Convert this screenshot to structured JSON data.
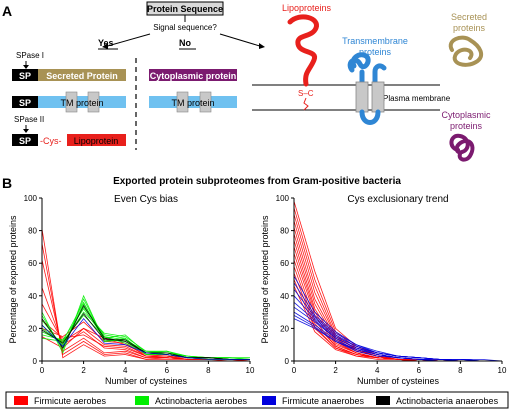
{
  "panel_a": {
    "letter": "A",
    "protein_sequence": "Protein Sequence",
    "signal_question": "Signal sequence?",
    "yes": "Yes",
    "no": "No",
    "spase1": "SPase I",
    "spase2": "SPase II",
    "sp": "SP",
    "secreted_protein": "Secreted Protein",
    "tm_protein": "TM protein",
    "cytoplasmic_protein": "Cytoplasmic protein",
    "cys": "-Cys-",
    "lipoprotein": "Lipoprotein",
    "lipoproteins_label": "Lipoproteins",
    "ss_label": "S–C",
    "transmembrane_label_1": "Transmembrane",
    "transmembrane_label_2": "proteins",
    "secreted_label_1": "Secreted",
    "secreted_label_2": "proteins",
    "plasma_membrane": "Plasma membrane",
    "cytoplasmic_label_1": "Cytoplasmic",
    "cytoplasmic_label_2": "proteins",
    "colors": {
      "secreted": "#a89255",
      "cytoplasmic": "#7b1a6f",
      "tm": "#6fc1f0",
      "lipo": "#e8201c",
      "transmembrane_text": "#2f86d4"
    }
  },
  "panel_b": {
    "letter": "B",
    "title": "Exported protein subproteomes from Gram-positive bacteria"
  },
  "chart_data": [
    {
      "type": "line",
      "title": "Even Cys bias",
      "xlabel": "Number of cysteines",
      "ylabel": "Percentage of exported proteins",
      "xlim": [
        0,
        10
      ],
      "ylim": [
        0,
        100
      ],
      "xticks": [
        0,
        2,
        4,
        6,
        8,
        10
      ],
      "yticks": [
        0,
        20,
        40,
        60,
        80,
        100
      ],
      "x": [
        0,
        1,
        2,
        3,
        4,
        5,
        6,
        7,
        8,
        9,
        10
      ],
      "series": [
        {
          "group": "Firmicute aerobes",
          "color": "#ff0000",
          "values": [
            81,
            2,
            10,
            3,
            4,
            1,
            1,
            1,
            1,
            1,
            1
          ]
        },
        {
          "group": "Firmicute aerobes",
          "color": "#ff0000",
          "values": [
            72,
            4,
            12,
            4,
            5,
            1,
            2,
            1,
            1,
            0,
            0
          ]
        },
        {
          "group": "Firmicute aerobes",
          "color": "#ff0000",
          "values": [
            62,
            6,
            14,
            5,
            6,
            2,
            2,
            1,
            1,
            1,
            0
          ]
        },
        {
          "group": "Firmicute aerobes",
          "color": "#ff0000",
          "values": [
            45,
            10,
            18,
            8,
            7,
            2,
            2,
            1,
            1,
            1,
            1
          ]
        },
        {
          "group": "Firmicute aerobes",
          "color": "#ff0000",
          "values": [
            35,
            12,
            20,
            10,
            9,
            3,
            3,
            1,
            1,
            1,
            1
          ]
        },
        {
          "group": "Firmicute aerobes",
          "color": "#ff0000",
          "values": [
            25,
            14,
            16,
            9,
            8,
            3,
            2,
            1,
            1,
            1,
            0
          ]
        },
        {
          "group": "Firmicute aerobes",
          "color": "#ff0000",
          "values": [
            20,
            15,
            24,
            12,
            11,
            3,
            3,
            2,
            1,
            1,
            1
          ]
        },
        {
          "group": "Firmicute aerobes",
          "color": "#ff0000",
          "values": [
            15,
            8,
            20,
            14,
            10,
            4,
            3,
            1,
            1,
            1,
            1
          ]
        },
        {
          "group": "Actinobacteria aerobes",
          "color": "#00ee00",
          "values": [
            30,
            5,
            40,
            12,
            13,
            4,
            4,
            2,
            2,
            1,
            1
          ]
        },
        {
          "group": "Actinobacteria aerobes",
          "color": "#00ee00",
          "values": [
            28,
            7,
            38,
            13,
            12,
            5,
            4,
            2,
            2,
            1,
            1
          ]
        },
        {
          "group": "Actinobacteria aerobes",
          "color": "#00ee00",
          "values": [
            25,
            9,
            35,
            15,
            11,
            5,
            5,
            2,
            1,
            1,
            1
          ]
        },
        {
          "group": "Actinobacteria aerobes",
          "color": "#00ee00",
          "values": [
            22,
            10,
            33,
            16,
            14,
            4,
            5,
            3,
            2,
            1,
            1
          ]
        },
        {
          "group": "Actinobacteria aerobes",
          "color": "#00ee00",
          "values": [
            20,
            11,
            30,
            17,
            15,
            6,
            6,
            3,
            2,
            2,
            1
          ]
        },
        {
          "group": "Actinobacteria aerobes",
          "color": "#00ee00",
          "values": [
            18,
            12,
            28,
            15,
            13,
            6,
            5,
            3,
            2,
            2,
            1
          ]
        },
        {
          "group": "Actinobacteria aerobes",
          "color": "#00ee00",
          "values": [
            16,
            13,
            32,
            14,
            16,
            5,
            6,
            2,
            2,
            2,
            2
          ]
        },
        {
          "group": "Actinobacteria aerobes",
          "color": "#00ee00",
          "values": [
            14,
            12,
            36,
            12,
            14,
            4,
            4,
            2,
            1,
            1,
            1
          ]
        },
        {
          "group": "Actinobacteria anaerobes",
          "color": "#000000",
          "values": [
            26,
            8,
            34,
            14,
            12,
            5,
            4,
            2,
            2,
            1,
            1
          ]
        },
        {
          "group": "Actinobacteria anaerobes",
          "color": "#000000",
          "values": [
            19,
            11,
            29,
            13,
            13,
            5,
            5,
            2,
            2,
            1,
            1
          ]
        },
        {
          "group": "Firmicute anaerobes",
          "color": "#0000dd",
          "values": [
            22,
            9,
            26,
            11,
            10,
            5,
            4,
            2,
            1,
            1,
            1
          ]
        }
      ]
    },
    {
      "type": "line",
      "title": "Cys exclusionary trend",
      "xlabel": "Number of cysteines",
      "ylabel": "Percentage of exported proteins",
      "xlim": [
        0,
        10
      ],
      "ylim": [
        0,
        100
      ],
      "xticks": [
        0,
        2,
        4,
        6,
        8,
        10
      ],
      "yticks": [
        0,
        20,
        40,
        60,
        80,
        100
      ],
      "x": [
        0,
        1,
        2,
        3,
        4,
        5,
        6,
        7,
        8,
        9,
        10
      ],
      "series": [
        {
          "group": "Firmicute aerobes",
          "color": "#ff0000",
          "values": [
            98,
            55,
            20,
            9,
            4,
            2,
            1,
            1,
            0,
            0,
            0
          ]
        },
        {
          "group": "Firmicute aerobes",
          "color": "#ff0000",
          "values": [
            94,
            50,
            18,
            8,
            4,
            2,
            1,
            1,
            0,
            0,
            0
          ]
        },
        {
          "group": "Firmicute aerobes",
          "color": "#ff0000",
          "values": [
            90,
            46,
            16,
            7,
            3,
            2,
            1,
            0,
            0,
            0,
            0
          ]
        },
        {
          "group": "Firmicute aerobes",
          "color": "#ff0000",
          "values": [
            86,
            42,
            15,
            7,
            3,
            1,
            1,
            0,
            0,
            0,
            0
          ]
        },
        {
          "group": "Firmicute aerobes",
          "color": "#ff0000",
          "values": [
            82,
            38,
            14,
            6,
            3,
            1,
            1,
            0,
            0,
            0,
            0
          ]
        },
        {
          "group": "Firmicute aerobes",
          "color": "#ff0000",
          "values": [
            78,
            35,
            13,
            6,
            3,
            1,
            1,
            0,
            0,
            0,
            0
          ]
        },
        {
          "group": "Firmicute aerobes",
          "color": "#ff0000",
          "values": [
            74,
            32,
            12,
            5,
            2,
            1,
            1,
            0,
            0,
            0,
            0
          ]
        },
        {
          "group": "Firmicute aerobes",
          "color": "#ff0000",
          "values": [
            70,
            30,
            11,
            5,
            2,
            1,
            0,
            0,
            0,
            0,
            0
          ]
        },
        {
          "group": "Firmicute aerobes",
          "color": "#ff0000",
          "values": [
            66,
            28,
            10,
            5,
            2,
            1,
            0,
            0,
            0,
            0,
            0
          ]
        },
        {
          "group": "Firmicute aerobes",
          "color": "#ff0000",
          "values": [
            62,
            25,
            9,
            4,
            2,
            1,
            0,
            0,
            0,
            0,
            0
          ]
        },
        {
          "group": "Firmicute aerobes",
          "color": "#ff0000",
          "values": [
            58,
            23,
            9,
            4,
            2,
            1,
            0,
            0,
            0,
            0,
            0
          ]
        },
        {
          "group": "Firmicute aerobes",
          "color": "#ff0000",
          "values": [
            54,
            21,
            8,
            4,
            2,
            1,
            0,
            0,
            0,
            0,
            0
          ]
        },
        {
          "group": "Firmicute aerobes",
          "color": "#ff0000",
          "values": [
            50,
            20,
            8,
            3,
            2,
            1,
            0,
            0,
            0,
            0,
            0
          ]
        },
        {
          "group": "Firmicute aerobes",
          "color": "#ff0000",
          "values": [
            46,
            18,
            7,
            3,
            1,
            1,
            0,
            0,
            0,
            0,
            0
          ]
        },
        {
          "group": "Firmicute anaerobes",
          "color": "#0000dd",
          "values": [
            52,
            30,
            18,
            10,
            6,
            3,
            2,
            1,
            1,
            0,
            0
          ]
        },
        {
          "group": "Firmicute anaerobes",
          "color": "#0000dd",
          "values": [
            48,
            28,
            17,
            10,
            5,
            3,
            2,
            1,
            1,
            1,
            0
          ]
        },
        {
          "group": "Firmicute anaerobes",
          "color": "#0000dd",
          "values": [
            44,
            27,
            16,
            9,
            5,
            3,
            2,
            1,
            1,
            0,
            0
          ]
        },
        {
          "group": "Firmicute anaerobes",
          "color": "#0000dd",
          "values": [
            40,
            26,
            15,
            9,
            5,
            3,
            2,
            1,
            1,
            0,
            0
          ]
        },
        {
          "group": "Firmicute anaerobes",
          "color": "#0000dd",
          "values": [
            36,
            25,
            14,
            8,
            5,
            3,
            2,
            1,
            0,
            0,
            0
          ]
        },
        {
          "group": "Firmicute anaerobes",
          "color": "#0000dd",
          "values": [
            33,
            24,
            14,
            8,
            4,
            2,
            1,
            1,
            0,
            0,
            0
          ]
        },
        {
          "group": "Firmicute anaerobes",
          "color": "#0000dd",
          "values": [
            30,
            22,
            13,
            7,
            4,
            2,
            1,
            1,
            0,
            0,
            0
          ]
        },
        {
          "group": "Firmicute anaerobes",
          "color": "#0000dd",
          "values": [
            28,
            21,
            12,
            7,
            4,
            2,
            1,
            0,
            0,
            0,
            0
          ]
        },
        {
          "group": "Firmicute anaerobes",
          "color": "#0000dd",
          "values": [
            26,
            20,
            12,
            6,
            3,
            2,
            1,
            0,
            0,
            0,
            0
          ]
        }
      ]
    }
  ],
  "legend": [
    {
      "label": "Firmicute aerobes",
      "color": "#ff0000"
    },
    {
      "label": "Actinobacteria aerobes",
      "color": "#00ee00"
    },
    {
      "label": "Firmicute anaerobes",
      "color": "#0000dd"
    },
    {
      "label": "Actinobacteria anaerobes",
      "color": "#000000"
    }
  ]
}
